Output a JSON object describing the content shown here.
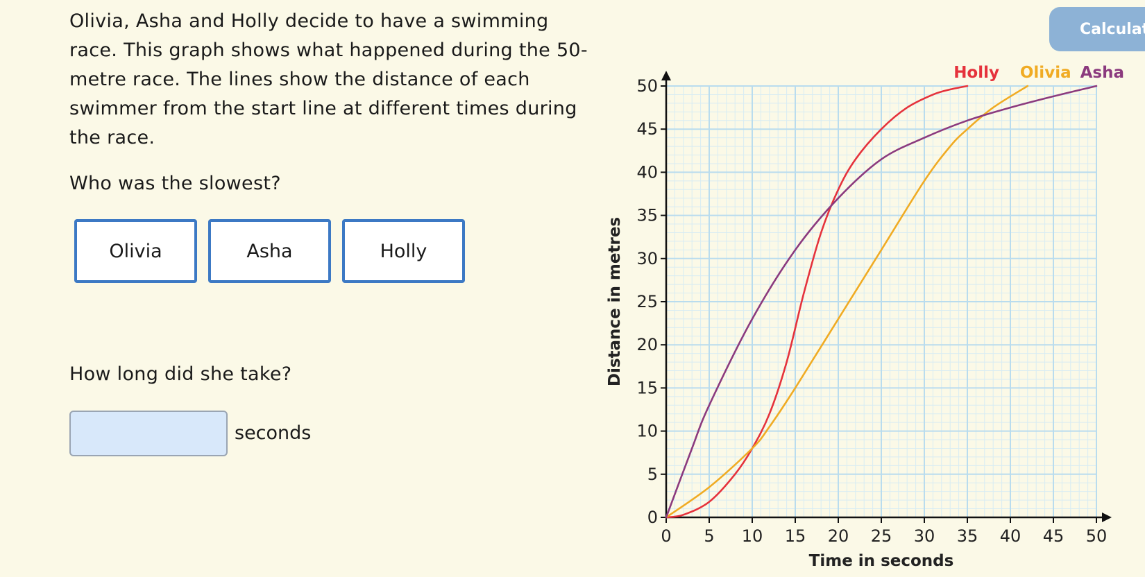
{
  "question": {
    "intro": "Olivia, Asha and Holly decide to have a swimming race. This graph shows what happened during the 50-metre race. The lines show the distance of each swimmer from the start line at different times during the race.",
    "part1_prompt": "Who was the slowest?",
    "choices": [
      "Olivia",
      "Asha",
      "Holly"
    ],
    "part2_prompt": "How long did she take?",
    "answer": {
      "value": "",
      "placeholder": ""
    },
    "units": "seconds"
  },
  "toolbar": {
    "calculator_label": "Calculator"
  },
  "chart_data": {
    "type": "line",
    "xlabel": "Time in seconds",
    "ylabel": "Distance in metres",
    "xlim": [
      0,
      50
    ],
    "ylim": [
      0,
      50
    ],
    "xticks": [
      0,
      5,
      10,
      15,
      20,
      25,
      30,
      35,
      40,
      45,
      50
    ],
    "yticks": [
      0,
      5,
      10,
      15,
      20,
      25,
      30,
      35,
      40,
      45,
      50
    ],
    "grid": true,
    "legend": "top-right",
    "series": [
      {
        "name": "Holly",
        "color": "#e5323c",
        "x": [
          0,
          2,
          5,
          8,
          10,
          12,
          14,
          16,
          18,
          20,
          22,
          25,
          28,
          31,
          33,
          35
        ],
        "y": [
          0,
          0.3,
          1.8,
          5,
          8,
          12,
          18,
          26,
          33,
          38,
          41.5,
          45,
          47.5,
          49,
          49.6,
          50
        ]
      },
      {
        "name": "Olivia",
        "color": "#f0ab23",
        "x": [
          0,
          5,
          10,
          12,
          15,
          20,
          25,
          30,
          33,
          35,
          38,
          42
        ],
        "y": [
          0,
          3.5,
          8,
          10.5,
          15,
          23,
          31,
          39,
          43,
          45,
          47.5,
          50
        ]
      },
      {
        "name": "Asha",
        "color": "#8b3a7e",
        "x": [
          0,
          3,
          5,
          10,
          15,
          20,
          25,
          30,
          35,
          40,
          45,
          50
        ],
        "y": [
          0,
          8,
          13,
          23,
          31,
          37,
          41.5,
          44,
          46,
          47.5,
          48.8,
          50
        ]
      }
    ]
  }
}
